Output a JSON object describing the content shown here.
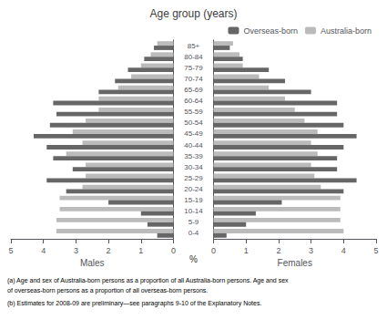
{
  "chart_data": {
    "type": "bar",
    "orientation": "horizontal",
    "title": "Age group (years)",
    "categories": [
      "0-4",
      "5-9",
      "10-14",
      "15-19",
      "20-24",
      "25-29",
      "30-34",
      "35-39",
      "40-44",
      "45-49",
      "50-54",
      "55-59",
      "60-64",
      "65-69",
      "70-74",
      "75-79",
      "80-84",
      "85+"
    ],
    "legend": "upper right",
    "grid": false,
    "annotations": [
      "%"
    ],
    "footnotes": [
      "(a) Age and sex of Australia-born persons as a proportion of all Australia-born persons. Age and sex",
      "of overseas-born persons as a proportion of all overseas-born persons.",
      "(b) Estimates for 2008-09 are preliminary—see paragraphs 9-10 of the Explanatory Notes."
    ],
    "panels": [
      {
        "xlabel": "Males",
        "xlim": [
          0,
          5
        ],
        "xticks": [
          0,
          1,
          2,
          3,
          4,
          5
        ],
        "series": [
          {
            "name": "Overseas-born",
            "color": "#666666",
            "values": [
              0.5,
              0.8,
              1.0,
              2.0,
              3.3,
              3.9,
              3.1,
              3.7,
              3.9,
              4.3,
              3.8,
              3.6,
              3.7,
              2.3,
              1.8,
              1.4,
              0.9,
              0.6
            ]
          },
          {
            "name": "Australia-born",
            "color": "#bbbbbb",
            "values": [
              3.6,
              3.6,
              3.5,
              3.5,
              2.8,
              2.7,
              2.7,
              3.3,
              2.8,
              3.1,
              2.7,
              2.3,
              2.3,
              1.7,
              1.3,
              1.0,
              0.7,
              0.5
            ]
          }
        ]
      },
      {
        "xlabel": "Females",
        "xlim": [
          0,
          5
        ],
        "xticks": [
          0,
          1,
          2,
          3,
          4,
          5
        ],
        "series": [
          {
            "name": "Overseas-born",
            "color": "#666666",
            "values": [
              0.4,
              1.0,
              1.3,
              2.1,
              4.0,
              4.4,
              3.8,
              3.8,
              4.0,
              4.4,
              4.0,
              3.8,
              3.8,
              3.0,
              2.2,
              1.7,
              0.9,
              0.5
            ]
          },
          {
            "name": "Australia-born",
            "color": "#bbbbbb",
            "values": [
              4.0,
              3.9,
              3.9,
              3.9,
              3.3,
              3.1,
              3.0,
              3.2,
              3.0,
              3.2,
              2.8,
              2.5,
              2.2,
              1.7,
              1.4,
              0.9,
              0.8,
              0.6
            ]
          }
        ]
      }
    ]
  }
}
